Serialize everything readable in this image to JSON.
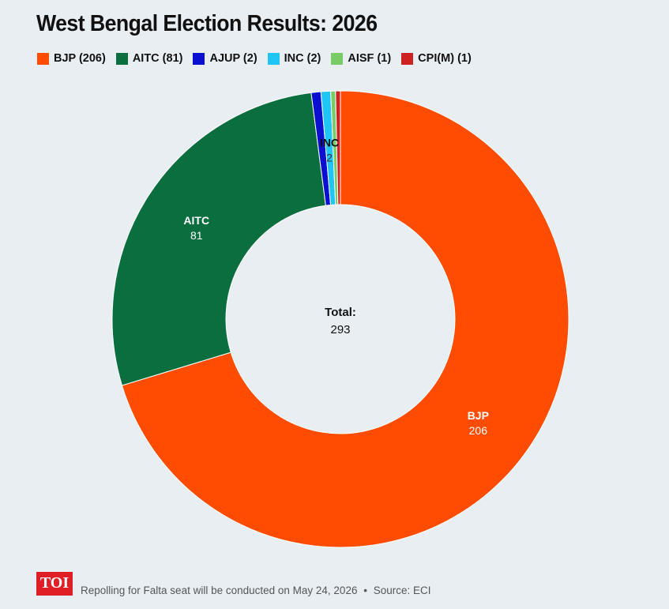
{
  "title": "West Bengal Election Results: 2026",
  "legend": [
    {
      "label": "BJP (206)",
      "color": "#ff4c00"
    },
    {
      "label": "AITC (81)",
      "color": "#0b6e3f"
    },
    {
      "label": "AJUP (2)",
      "color": "#0a0fd0"
    },
    {
      "label": "INC (2)",
      "color": "#1ec5f5"
    },
    {
      "label": "AISF (1)",
      "color": "#77cc66"
    },
    {
      "label": "CPI(M) (1)",
      "color": "#cc2222"
    }
  ],
  "chart_data": {
    "type": "pie",
    "title": "West Bengal Election Results: 2026",
    "donut": true,
    "categories": [
      "BJP",
      "AITC",
      "AJUP",
      "INC",
      "AISF",
      "CPI(M)"
    ],
    "values": [
      206,
      81,
      2,
      2,
      1,
      1
    ],
    "colors": [
      "#ff4c00",
      "#0b6e3f",
      "#0a0fd0",
      "#1ec5f5",
      "#77cc66",
      "#cc2222"
    ],
    "slice_labels": [
      {
        "name": "BJP",
        "value": "206"
      },
      {
        "name": "AITC",
        "value": "81"
      },
      {
        "name": "INC",
        "value": "2"
      }
    ],
    "center_label": "Total:",
    "center_value": "293"
  },
  "footer": {
    "logo_text": "TOI",
    "note": "Repolling for Falta seat will be conducted on May 24, 2026",
    "separator": "•",
    "source": "Source: ECI"
  }
}
